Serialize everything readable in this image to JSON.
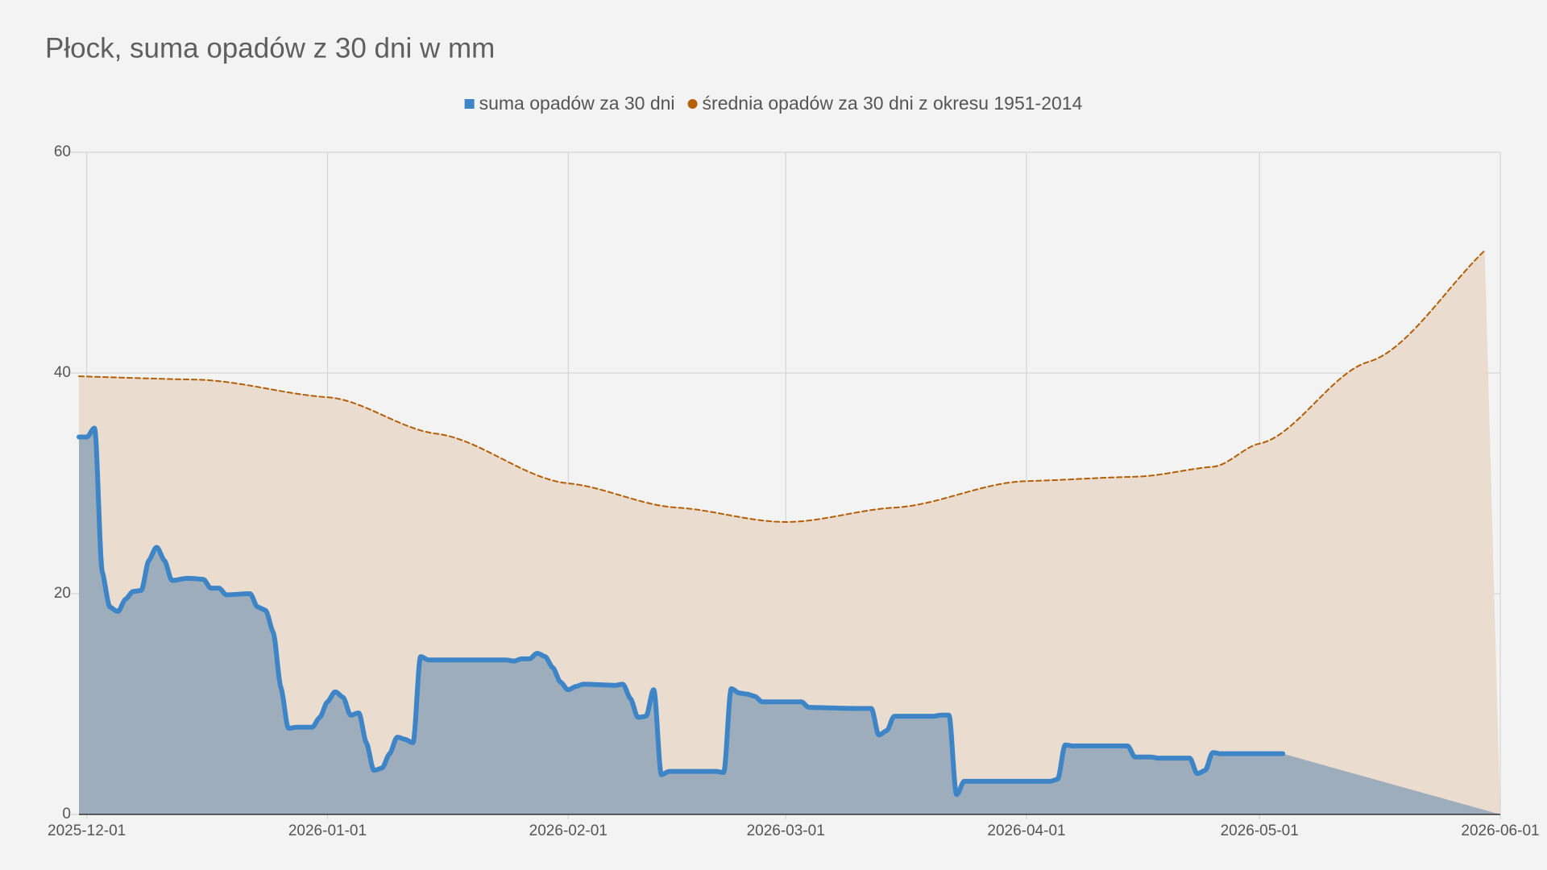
{
  "chart_data": {
    "type": "area",
    "title": "Płock, suma opadów z 30 dni w mm",
    "legend": "top",
    "grid": true,
    "xlim": [
      "2025-11-30",
      "2026-06-01"
    ],
    "xticks": [
      "2025-12-01",
      "2026-01-01",
      "2026-02-01",
      "2026-03-01",
      "2026-04-01",
      "2026-05-01",
      "2026-06-01"
    ],
    "ylim": [
      0,
      60
    ],
    "yticks": [
      0,
      20,
      40,
      60
    ],
    "series": [
      {
        "name": "suma opadów za 30 dni",
        "color": "#3d85c6",
        "fill": "#9eadbc",
        "marker": "square",
        "smooth": true,
        "dashed": false,
        "x": [
          "2025-11-30",
          "2025-12-01",
          "2025-12-02",
          "2025-12-03",
          "2025-12-04",
          "2025-12-05",
          "2025-12-06",
          "2025-12-07",
          "2025-12-08",
          "2025-12-09",
          "2025-12-10",
          "2025-12-11",
          "2025-12-12",
          "2025-12-14",
          "2025-12-16",
          "2025-12-17",
          "2025-12-18",
          "2025-12-19",
          "2025-12-22",
          "2025-12-23",
          "2025-12-24",
          "2025-12-25",
          "2025-12-26",
          "2025-12-27",
          "2025-12-28",
          "2025-12-30",
          "2025-12-31",
          "2026-01-01",
          "2026-01-02",
          "2026-01-03",
          "2026-01-04",
          "2026-01-05",
          "2026-01-06",
          "2026-01-07",
          "2026-01-08",
          "2026-01-09",
          "2026-01-10",
          "2026-01-11",
          "2026-01-12",
          "2026-01-13",
          "2026-01-14",
          "2026-01-24",
          "2026-01-25",
          "2026-01-26",
          "2026-01-27",
          "2026-01-28",
          "2026-01-29",
          "2026-01-30",
          "2026-01-31",
          "2026-02-01",
          "2026-02-02",
          "2026-02-03",
          "2026-02-07",
          "2026-02-08",
          "2026-02-09",
          "2026-02-10",
          "2026-02-11",
          "2026-02-12",
          "2026-02-13",
          "2026-02-14",
          "2026-02-20",
          "2026-02-21",
          "2026-02-22",
          "2026-02-23",
          "2026-02-24",
          "2026-02-25",
          "2026-02-26",
          "2026-03-03",
          "2026-03-04",
          "2026-03-11",
          "2026-03-12",
          "2026-03-13",
          "2026-03-14",
          "2026-03-15",
          "2026-03-20",
          "2026-03-21",
          "2026-03-22",
          "2026-03-23",
          "2026-03-24",
          "2026-04-04",
          "2026-04-05",
          "2026-04-06",
          "2026-04-07",
          "2026-04-14",
          "2026-04-15",
          "2026-04-17",
          "2026-04-18",
          "2026-04-22",
          "2026-04-23",
          "2026-04-24",
          "2026-04-25",
          "2026-04-26",
          "2026-05-04"
        ],
        "values": [
          34.2,
          34.2,
          35,
          22,
          18.8,
          18.4,
          19.5,
          20.2,
          20.3,
          23,
          24.2,
          23,
          21.2,
          21.4,
          21.3,
          20.5,
          20.5,
          19.9,
          20,
          18.8,
          18.5,
          16.5,
          11.5,
          7.8,
          7.9,
          7.9,
          8.8,
          10.2,
          11.1,
          10.6,
          9,
          9.2,
          6.5,
          4,
          4.2,
          5.5,
          7,
          6.8,
          6.5,
          14.3,
          14,
          14,
          13.9,
          14.1,
          14.1,
          14.6,
          14.3,
          13.3,
          12,
          11.3,
          11.6,
          11.8,
          11.7,
          11.8,
          10.5,
          8.8,
          8.9,
          11.3,
          3.6,
          3.9,
          3.9,
          3.8,
          11.4,
          11,
          10.9,
          10.7,
          10.2,
          10.2,
          9.7,
          9.6,
          9.6,
          7.2,
          7.6,
          8.9,
          8.9,
          9,
          9,
          1.8,
          3,
          3,
          3.2,
          6.3,
          6.2,
          6.2,
          5.2,
          5.2,
          5.1,
          5.1,
          3.7,
          4,
          5.6,
          5.5,
          5.5
        ]
      },
      {
        "name": "średnia opadów za 30 dni z okresu 1951-2014",
        "color": "#b45f06",
        "fill": "#eadccf",
        "marker": "circle",
        "smooth": true,
        "dashed": true,
        "x": [
          "2025-11-30",
          "2025-12-15",
          "2026-01-01",
          "2026-01-15",
          "2026-02-01",
          "2026-02-15",
          "2026-03-01",
          "2026-03-15",
          "2026-04-01",
          "2026-04-15",
          "2026-04-25",
          "2026-05-01",
          "2026-05-15",
          "2026-05-30"
        ],
        "values": [
          39.7,
          39.4,
          37.8,
          34.5,
          30,
          27.8,
          26.5,
          27.8,
          30.2,
          30.6,
          31.5,
          33.6,
          41,
          51.1
        ]
      }
    ]
  }
}
